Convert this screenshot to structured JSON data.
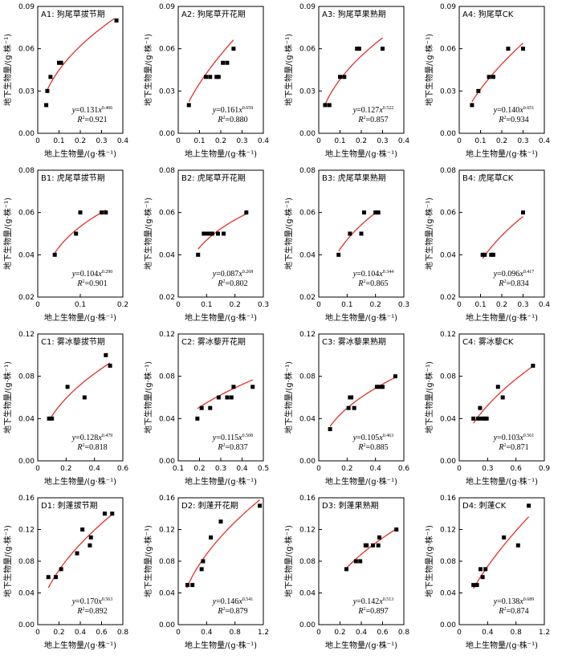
{
  "figure": {
    "xlabel": "地上生物量/(g·株⁻¹)",
    "ylabel": "地下生物量/(g·株⁻¹)"
  },
  "chart_data": [
    {
      "id": "A1",
      "type": "scatter",
      "title": "A1: 狗尾草拔节期",
      "xlim": [
        0,
        0.4
      ],
      "ylim": [
        0,
        0.09
      ],
      "xticks": [
        "0",
        "0.1",
        "0.2",
        "0.3",
        "0.4"
      ],
      "yticks": [
        "0.00",
        "0.03",
        "0.06",
        "0.09"
      ],
      "x": [
        0.04,
        0.045,
        0.06,
        0.1,
        0.11,
        0.37
      ],
      "y": [
        0.02,
        0.03,
        0.04,
        0.05,
        0.05,
        0.08
      ],
      "fit": {
        "a": 0.131,
        "b": 0.466,
        "x_range": [
          0.04,
          0.36
        ]
      },
      "equation": {
        "lhs": "y",
        "eq": "=0.131",
        "var": "x",
        "exp": "0.466"
      },
      "r2": {
        "label": "R",
        "sq": "2",
        "value": "=0.921"
      }
    },
    {
      "id": "A2",
      "type": "scatter",
      "title": "A2: 狗尾草开花期",
      "xlim": [
        0,
        0.4
      ],
      "ylim": [
        0,
        0.09
      ],
      "xticks": [
        "0",
        "0.1",
        "0.2",
        "0.3",
        "0.4"
      ],
      "yticks": [
        "0.00",
        "0.03",
        "0.06",
        "0.09"
      ],
      "x": [
        0.05,
        0.13,
        0.15,
        0.18,
        0.19,
        0.21,
        0.23,
        0.26
      ],
      "y": [
        0.02,
        0.04,
        0.04,
        0.04,
        0.04,
        0.05,
        0.05,
        0.06
      ],
      "fit": {
        "a": 0.161,
        "b": 0.659,
        "x_range": [
          0.05,
          0.26
        ]
      },
      "equation": {
        "lhs": "y",
        "eq": "=0.161",
        "var": "x",
        "exp": "0.659"
      },
      "r2": {
        "label": "R",
        "sq": "2",
        "value": "=0.880"
      }
    },
    {
      "id": "A3",
      "type": "scatter",
      "title": "A3: 狗尾草果熟期",
      "xlim": [
        0,
        0.4
      ],
      "ylim": [
        0,
        0.09
      ],
      "xticks": [
        "0",
        "0.1",
        "0.2",
        "0.3",
        "0.4"
      ],
      "yticks": [
        "0.00",
        "0.03",
        "0.06",
        "0.09"
      ],
      "x": [
        0.03,
        0.05,
        0.1,
        0.12,
        0.18,
        0.19,
        0.3
      ],
      "y": [
        0.02,
        0.02,
        0.04,
        0.04,
        0.06,
        0.06,
        0.06
      ],
      "fit": {
        "a": 0.127,
        "b": 0.522,
        "x_range": [
          0.03,
          0.3
        ]
      },
      "equation": {
        "lhs": "y",
        "eq": "=0.127",
        "var": "x",
        "exp": "0.522"
      },
      "r2": {
        "label": "R",
        "sq": "2",
        "value": "=0.857"
      }
    },
    {
      "id": "A4",
      "type": "scatter",
      "title": "A4: 狗尾草CK",
      "xlim": [
        0,
        0.4
      ],
      "ylim": [
        0,
        0.09
      ],
      "xticks": [
        "0",
        "0.1",
        "0.2",
        "0.3",
        "0.4"
      ],
      "yticks": [
        "0.00",
        "0.03",
        "0.06",
        "0.09"
      ],
      "x": [
        0.06,
        0.09,
        0.14,
        0.16,
        0.23,
        0.3
      ],
      "y": [
        0.02,
        0.03,
        0.04,
        0.04,
        0.06,
        0.06
      ],
      "fit": {
        "a": 0.14,
        "b": 0.651,
        "x_range": [
          0.06,
          0.3
        ]
      },
      "equation": {
        "lhs": "y",
        "eq": "=0.140",
        "var": "x",
        "exp": "0.651"
      },
      "r2": {
        "label": "R",
        "sq": "2",
        "value": "=0.934"
      }
    },
    {
      "id": "B1",
      "type": "scatter",
      "title": "B1: 虎尾草拔节期",
      "xlim": [
        0,
        0.2
      ],
      "ylim": [
        0.02,
        0.08
      ],
      "xticks": [
        "0",
        "0.1",
        "0.2"
      ],
      "yticks": [
        "0.02",
        "0.04",
        "0.06",
        "0.08"
      ],
      "x": [
        0.04,
        0.09,
        0.1,
        0.15,
        0.16
      ],
      "y": [
        0.04,
        0.05,
        0.06,
        0.06,
        0.06
      ],
      "fit": {
        "a": 0.104,
        "b": 0.29,
        "x_range": [
          0.04,
          0.16
        ]
      },
      "equation": {
        "lhs": "y",
        "eq": "=0.104",
        "var": "x",
        "exp": "0.290"
      },
      "r2": {
        "label": "R",
        "sq": "2",
        "value": "=0.901"
      }
    },
    {
      "id": "B2",
      "type": "scatter",
      "title": "B2: 虎尾草开花期",
      "xlim": [
        0,
        0.3
      ],
      "ylim": [
        0.02,
        0.08
      ],
      "xticks": [
        "0",
        "0.1",
        "0.2",
        "0.3"
      ],
      "yticks": [
        "0.02",
        "0.04",
        "0.06",
        "0.08"
      ],
      "x": [
        0.07,
        0.09,
        0.1,
        0.11,
        0.12,
        0.14,
        0.16,
        0.24
      ],
      "y": [
        0.04,
        0.05,
        0.05,
        0.05,
        0.05,
        0.05,
        0.05,
        0.06
      ],
      "fit": {
        "a": 0.087,
        "b": 0.268,
        "x_range": [
          0.07,
          0.24
        ]
      },
      "equation": {
        "lhs": "y",
        "eq": "=0.087",
        "var": "x",
        "exp": "0.268"
      },
      "r2": {
        "label": "R",
        "sq": "2",
        "value": "=0.802"
      }
    },
    {
      "id": "B3",
      "type": "scatter",
      "title": "B3: 虎尾草果熟期",
      "xlim": [
        0,
        0.3
      ],
      "ylim": [
        0.02,
        0.08
      ],
      "xticks": [
        "0",
        "0.1",
        "0.2",
        "0.3"
      ],
      "yticks": [
        "0.02",
        "0.04",
        "0.06",
        "0.08"
      ],
      "x": [
        0.07,
        0.11,
        0.15,
        0.16,
        0.2,
        0.21
      ],
      "y": [
        0.04,
        0.05,
        0.05,
        0.06,
        0.06,
        0.06
      ],
      "fit": {
        "a": 0.104,
        "b": 0.344,
        "x_range": [
          0.07,
          0.21
        ]
      },
      "equation": {
        "lhs": "y",
        "eq": "=0.104",
        "var": "x",
        "exp": "0.344"
      },
      "r2": {
        "label": "R",
        "sq": "2",
        "value": "=0.865"
      }
    },
    {
      "id": "B4",
      "type": "scatter",
      "title": "B4: 虎尾草CK",
      "xlim": [
        0,
        0.4
      ],
      "ylim": [
        0.02,
        0.08
      ],
      "xticks": [
        "0",
        "0.1",
        "0.2",
        "0.3",
        "0.4"
      ],
      "yticks": [
        "0.02",
        "0.04",
        "0.06",
        "0.08"
      ],
      "x": [
        0.11,
        0.12,
        0.15,
        0.16,
        0.3
      ],
      "y": [
        0.04,
        0.04,
        0.04,
        0.04,
        0.06
      ],
      "fit": {
        "a": 0.096,
        "b": 0.417,
        "x_range": [
          0.11,
          0.3
        ]
      },
      "equation": {
        "lhs": "y",
        "eq": "=0.096",
        "var": "x",
        "exp": "0.417"
      },
      "r2": {
        "label": "R",
        "sq": "2",
        "value": "=0.834"
      }
    },
    {
      "id": "C1",
      "type": "scatter",
      "title": "C1: 雾冰藜拔节期",
      "xlim": [
        0,
        0.6
      ],
      "ylim": [
        0,
        0.12
      ],
      "xticks": [
        "0",
        "0.2",
        "0.4",
        "0.6"
      ],
      "yticks": [
        "0.00",
        "0.04",
        "0.08",
        "0.12"
      ],
      "x": [
        0.08,
        0.1,
        0.21,
        0.33,
        0.48,
        0.51
      ],
      "y": [
        0.04,
        0.04,
        0.07,
        0.06,
        0.1,
        0.09
      ],
      "fit": {
        "a": 0.128,
        "b": 0.479,
        "x_range": [
          0.08,
          0.51
        ]
      },
      "equation": {
        "lhs": "y",
        "eq": "=0.128",
        "var": "x",
        "exp": "0.479"
      },
      "r2": {
        "label": "R",
        "sq": "2",
        "value": "=0.818"
      }
    },
    {
      "id": "C2",
      "type": "scatter",
      "title": "C2: 雾冰藜开花期",
      "xlim": [
        0.1,
        0.5
      ],
      "ylim": [
        0,
        0.12
      ],
      "xticks": [
        "0.1",
        "0.2",
        "0.3",
        "0.4",
        "0.5"
      ],
      "yticks": [
        "0.00",
        "0.04",
        "0.08",
        "0.12"
      ],
      "x": [
        0.19,
        0.21,
        0.25,
        0.29,
        0.33,
        0.35,
        0.36,
        0.45
      ],
      "y": [
        0.04,
        0.05,
        0.05,
        0.06,
        0.06,
        0.06,
        0.07,
        0.07
      ],
      "fit": {
        "a": 0.115,
        "b": 0.508,
        "x_range": [
          0.19,
          0.45
        ]
      },
      "equation": {
        "lhs": "y",
        "eq": "=0.115",
        "var": "x",
        "exp": "0.508"
      },
      "r2": {
        "label": "R",
        "sq": "2",
        "value": "=0.837"
      }
    },
    {
      "id": "C3",
      "type": "scatter",
      "title": "C3: 雾冰藜果熟期",
      "xlim": [
        0,
        0.6
      ],
      "ylim": [
        0,
        0.12
      ],
      "xticks": [
        "0",
        "0.2",
        "0.4",
        "0.6"
      ],
      "yticks": [
        "0.00",
        "0.04",
        "0.08",
        "0.12"
      ],
      "x": [
        0.08,
        0.21,
        0.22,
        0.23,
        0.25,
        0.41,
        0.43,
        0.45,
        0.54
      ],
      "y": [
        0.03,
        0.05,
        0.06,
        0.06,
        0.05,
        0.07,
        0.07,
        0.07,
        0.08
      ],
      "fit": {
        "a": 0.105,
        "b": 0.463,
        "x_range": [
          0.08,
          0.54
        ]
      },
      "equation": {
        "lhs": "y",
        "eq": "=0.105",
        "var": "x",
        "exp": "0.463"
      },
      "r2": {
        "label": "R",
        "sq": "2",
        "value": "=0.885"
      }
    },
    {
      "id": "C4",
      "type": "scatter",
      "title": "C4: 雾冰藜CK",
      "xlim": [
        0,
        0.9
      ],
      "ylim": [
        0,
        0.12
      ],
      "xticks": [
        "0",
        "0.3",
        "0.6",
        "0.9"
      ],
      "yticks": [
        "0.00",
        "0.04",
        "0.08",
        "0.12"
      ],
      "x": [
        0.15,
        0.2,
        0.22,
        0.24,
        0.27,
        0.29,
        0.41,
        0.46,
        0.78
      ],
      "y": [
        0.04,
        0.04,
        0.05,
        0.04,
        0.04,
        0.04,
        0.07,
        0.06,
        0.09
      ],
      "fit": {
        "a": 0.103,
        "b": 0.561,
        "x_range": [
          0.15,
          0.78
        ]
      },
      "equation": {
        "lhs": "y",
        "eq": "=0.103",
        "var": "x",
        "exp": "0.561"
      },
      "r2": {
        "label": "R",
        "sq": "2",
        "value": "=0.871"
      }
    },
    {
      "id": "D1",
      "type": "scatter",
      "title": "D1: 刺蓬拔节期",
      "xlim": [
        0,
        0.8
      ],
      "ylim": [
        0,
        0.16
      ],
      "xticks": [
        "0",
        "0.2",
        "0.4",
        "0.6",
        "0.8"
      ],
      "yticks": [
        "0.00",
        "0.04",
        "0.08",
        "0.12",
        "0.16"
      ],
      "x": [
        0.1,
        0.17,
        0.22,
        0.37,
        0.42,
        0.49,
        0.5,
        0.63,
        0.7
      ],
      "y": [
        0.06,
        0.06,
        0.07,
        0.09,
        0.12,
        0.1,
        0.11,
        0.14,
        0.14
      ],
      "fit": {
        "a": 0.17,
        "b": 0.563,
        "x_range": [
          0.1,
          0.7
        ]
      },
      "equation": {
        "lhs": "y",
        "eq": "=0.170",
        "var": "x",
        "exp": "0.563"
      },
      "r2": {
        "label": "R",
        "sq": "2",
        "value": "=0.892"
      }
    },
    {
      "id": "D2",
      "type": "scatter",
      "title": "D2: 刺蓬开花期",
      "xlim": [
        0,
        1.2
      ],
      "ylim": [
        0,
        0.16
      ],
      "xticks": [
        "0",
        "0.4",
        "0.8",
        "1.2"
      ],
      "yticks": [
        "0.00",
        "0.04",
        "0.08",
        "0.12",
        "0.16"
      ],
      "x": [
        0.13,
        0.2,
        0.33,
        0.35,
        0.46,
        0.6,
        1.15
      ],
      "y": [
        0.05,
        0.05,
        0.07,
        0.08,
        0.11,
        0.13,
        0.15
      ],
      "fit": {
        "a": 0.146,
        "b": 0.541,
        "x_range": [
          0.12,
          1.15
        ]
      },
      "equation": {
        "lhs": "y",
        "eq": "=0.146",
        "var": "x",
        "exp": "0.541"
      },
      "r2": {
        "label": "R",
        "sq": "2",
        "value": "=0.879"
      }
    },
    {
      "id": "D3",
      "type": "scatter",
      "title": "D3: 刺蓬果熟期",
      "xlim": [
        0,
        0.8
      ],
      "ylim": [
        0,
        0.16
      ],
      "xticks": [
        "0",
        "0.2",
        "0.4",
        "0.6",
        "0.8"
      ],
      "yticks": [
        "0.00",
        "0.04",
        "0.08",
        "0.12",
        "0.16"
      ],
      "x": [
        0.26,
        0.35,
        0.39,
        0.44,
        0.45,
        0.51,
        0.56,
        0.57,
        0.73
      ],
      "y": [
        0.07,
        0.08,
        0.08,
        0.1,
        0.1,
        0.1,
        0.1,
        0.11,
        0.12
      ],
      "fit": {
        "a": 0.142,
        "b": 0.513,
        "x_range": [
          0.26,
          0.73
        ]
      },
      "equation": {
        "lhs": "y",
        "eq": "=0.142",
        "var": "x",
        "exp": "0.513"
      },
      "r2": {
        "label": "R",
        "sq": "2",
        "value": "=0.897"
      }
    },
    {
      "id": "D4",
      "type": "scatter",
      "title": "D4: 刺蓬CK",
      "xlim": [
        0,
        1.2
      ],
      "ylim": [
        0,
        0.16
      ],
      "xticks": [
        "0",
        "0.4",
        "0.8",
        "1.2"
      ],
      "yticks": [
        "0.00",
        "0.04",
        "0.08",
        "0.12",
        "0.16"
      ],
      "x": [
        0.2,
        0.25,
        0.3,
        0.33,
        0.37,
        0.63,
        0.83,
        0.98
      ],
      "y": [
        0.05,
        0.05,
        0.07,
        0.06,
        0.07,
        0.11,
        0.1,
        0.15
      ],
      "fit": {
        "a": 0.138,
        "b": 0.689,
        "x_range": [
          0.2,
          0.98
        ]
      },
      "equation": {
        "lhs": "y",
        "eq": "=0.138",
        "var": "x",
        "exp": "0.689"
      },
      "r2": {
        "label": "R",
        "sq": "2",
        "value": "=0.874"
      }
    }
  ],
  "colors": {
    "fit_line": "#e0322a",
    "marker": "#000000",
    "axis": "#000000"
  }
}
